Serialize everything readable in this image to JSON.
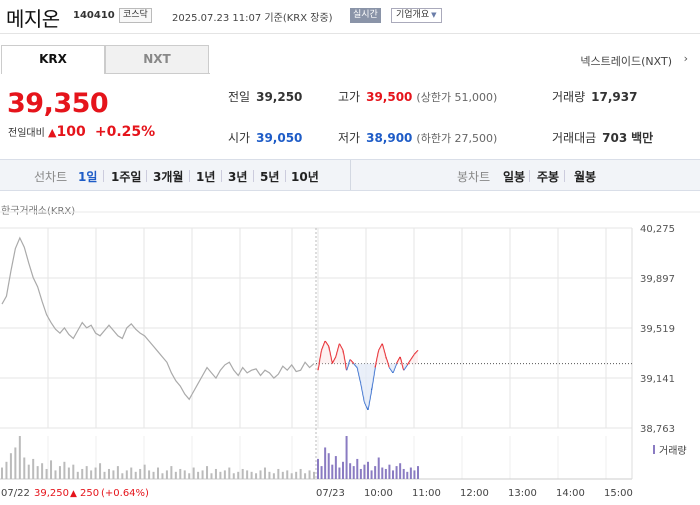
{
  "header": {
    "stock_name": "메지온",
    "stock_code": "140410",
    "market": "코스닥",
    "timestamp": "2025.07.23 11:07 기준(KRX 장중)",
    "realtime_label": "실시간",
    "corp_overview_label": "기업개요"
  },
  "tabs": [
    {
      "label": "KRX",
      "active": true
    },
    {
      "label": "NXT",
      "active": false
    }
  ],
  "nextrade_label": "넥스트레이드(NXT)",
  "nextrade_arrow": "›",
  "price": {
    "current": "39,350",
    "change_label": "전일대비",
    "change_arrow": "▲",
    "change_value": "100",
    "change_pct": "+0.25%"
  },
  "stats": {
    "prev_close_label": "전일",
    "prev_close": "39,250",
    "high_label": "고가",
    "high": "39,500",
    "upper_limit": "(상한가 51,000)",
    "volume_label": "거래량",
    "volume": "17,937",
    "open_label": "시가",
    "open": "39,050",
    "low_label": "저가",
    "low": "38,900",
    "lower_limit": "(하한가 27,500)",
    "amount_label": "거래대금",
    "amount": "703",
    "amount_unit": "백만"
  },
  "period_bar": {
    "line_chart_label": "선차트",
    "periods": [
      "1일",
      "1주일",
      "3개월",
      "1년",
      "3년",
      "5년",
      "10년"
    ],
    "active_period": "1일",
    "candle_label": "봉차트",
    "candle_periods": [
      "일봉",
      "주봉",
      "월봉"
    ]
  },
  "chart_title": "한국거래소(KRX)",
  "colors": {
    "up": "#e5141b",
    "down": "#1e5cc7",
    "prev": "#aaaaaa",
    "grid": "#e6e6e6"
  },
  "chart_data": {
    "type": "line",
    "y_ticks": [
      "40,275",
      "39,897",
      "39,519",
      "39,141",
      "38,763"
    ],
    "ylim": [
      38763,
      40275
    ],
    "prev_close": 39250,
    "x_labels_prev_day": [
      "07/22"
    ],
    "x_labels_today": [
      "07/23",
      "10:00",
      "11:00",
      "12:00",
      "13:00",
      "14:00",
      "15:00"
    ],
    "volume_legend": "거래량",
    "footer": {
      "date": "07/22",
      "close": "39,250",
      "arrow": "▲",
      "change": "250",
      "pct": "(+0.64%)"
    },
    "series": [
      {
        "name": "07/22",
        "values": [
          39700,
          39760,
          39950,
          40120,
          40200,
          40130,
          40010,
          39900,
          39830,
          39720,
          39620,
          39560,
          39510,
          39480,
          39520,
          39470,
          39440,
          39500,
          39560,
          39520,
          39540,
          39480,
          39460,
          39500,
          39540,
          39500,
          39460,
          39440,
          39520,
          39550,
          39510,
          39480,
          39460,
          39420,
          39380,
          39340,
          39300,
          39260,
          39180,
          39120,
          39080,
          39020,
          38980,
          39040,
          39100,
          39160,
          39220,
          39180,
          39140,
          39200,
          39240,
          39260,
          39200,
          39160,
          39220,
          39180,
          39200,
          39210,
          39160,
          39200,
          39180,
          39140,
          39170,
          39230,
          39200,
          39240,
          39190,
          39200,
          39260,
          39220,
          39250
        ]
      },
      {
        "name": "07/23",
        "values": [
          39200,
          39350,
          39420,
          39380,
          39250,
          39300,
          39400,
          39350,
          39200,
          39280,
          39250,
          39220,
          39100,
          38960,
          38900,
          39050,
          39220,
          39350,
          39400,
          39300,
          39220,
          39180,
          39250,
          39300,
          39200,
          39240,
          39280,
          39320,
          39350
        ]
      }
    ],
    "volume_prev": [
      8,
      12,
      18,
      22,
      30,
      15,
      10,
      14,
      9,
      11,
      7,
      13,
      6,
      9,
      12,
      8,
      10,
      5,
      7,
      9,
      6,
      8,
      11,
      5,
      7,
      6,
      9,
      4,
      6,
      8,
      5,
      7,
      10,
      6,
      5,
      8,
      4,
      6,
      9,
      5,
      7,
      6,
      4,
      8,
      5,
      6,
      9,
      4,
      7,
      5,
      6,
      8,
      4,
      5,
      7,
      6,
      5,
      4,
      6,
      8,
      5,
      4,
      7,
      5,
      6,
      4,
      5,
      7,
      4,
      6,
      5
    ],
    "volume_today": [
      14,
      9,
      22,
      18,
      10,
      16,
      8,
      12,
      30,
      11,
      9,
      14,
      7,
      10,
      12,
      6,
      9,
      15,
      8,
      7,
      10,
      6,
      9,
      11,
      7,
      5,
      8,
      6,
      9
    ]
  }
}
